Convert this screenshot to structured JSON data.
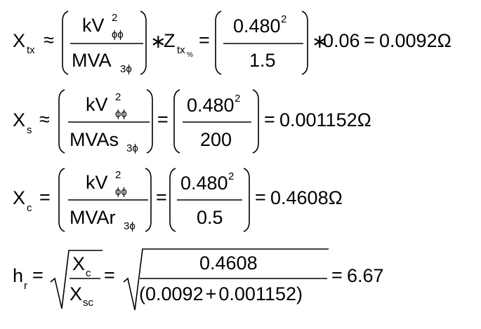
{
  "equations": [
    {
      "lhs": "X",
      "lhs_sub": "tx",
      "relation": "≈",
      "num_base": "kV",
      "num_sup": "2",
      "num_sub": "ϕϕ",
      "den_base": "MVA",
      "den_sub": "3ϕ",
      "times1": "∗",
      "factor": "Z",
      "factor_sub": "tx",
      "factor_subsub": "%",
      "eq1": "=",
      "sub_num": "0.480",
      "sub_sup": "2",
      "sub_den": "1.5",
      "times2": "∗",
      "factor_value": "0.06",
      "eq2": "=",
      "result": "0.0092",
      "unit": "Ω"
    },
    {
      "lhs": "X",
      "lhs_sub": "s",
      "relation": "≈",
      "num_base": "kV",
      "num_sup": "2",
      "num_sub": "ϕϕ",
      "den_base": "MVAs",
      "den_sub": "3ϕ",
      "eq1": "=",
      "sub_num": "0.480",
      "sub_sup": "2",
      "sub_den": "200",
      "eq2": "=",
      "result": "0.001152",
      "unit": "Ω"
    },
    {
      "lhs": "X",
      "lhs_sub": "c",
      "relation": "=",
      "num_base": "kV",
      "num_sup": "2",
      "num_sub": "ϕϕ",
      "den_base": "MVAr",
      "den_sub": "3ϕ",
      "eq1": "=",
      "sub_num": "0.480",
      "sub_sup": "2",
      "sub_den": "0.5",
      "eq2": "=",
      "result": "0.4608",
      "unit": "Ω"
    },
    {
      "lhs": "h",
      "lhs_sub": "r",
      "relation": "=",
      "rad_num": "X",
      "rad_num_sub": "c",
      "rad_den": "X",
      "rad_den_sub": "sc",
      "eq1": "=",
      "sub_num": "0.4608",
      "open": "(",
      "term1": "0.0092",
      "plus": "+",
      "term2": "0.001152",
      "close": ")",
      "eq2": "=",
      "result": "6.67"
    }
  ]
}
